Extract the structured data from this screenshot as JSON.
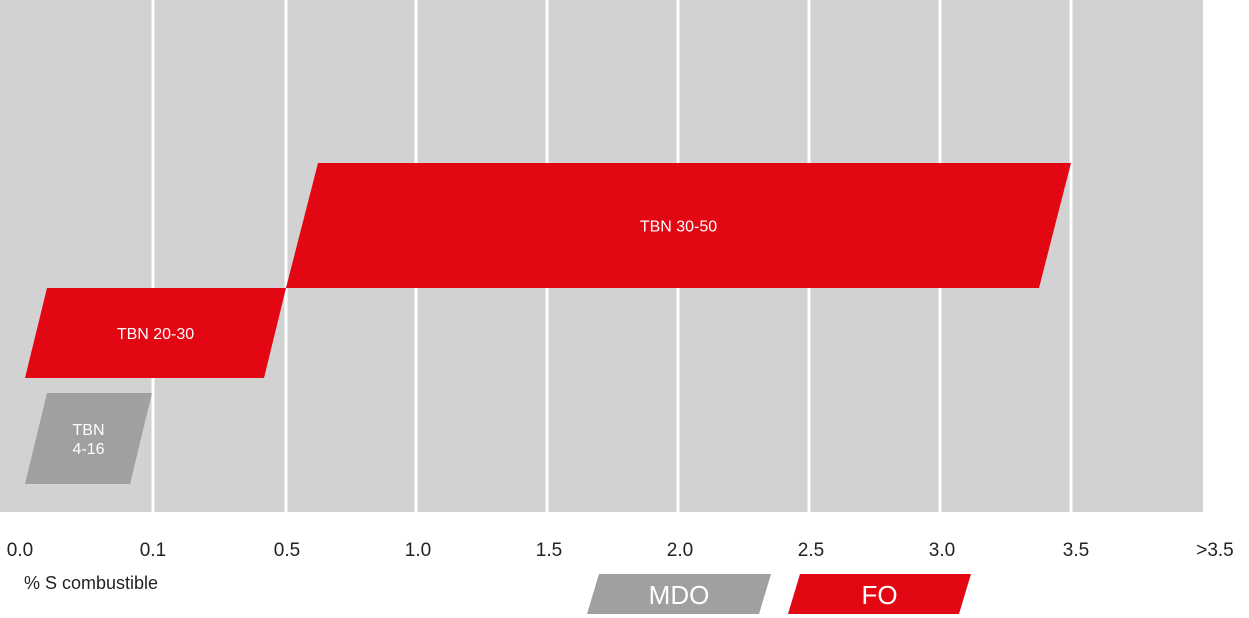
{
  "chart_data": {
    "type": "bar",
    "orientation": "horizontal-ranges",
    "xlabel": "% S combustible",
    "ylabel": "",
    "x_ticks": [
      "0.0",
      "0.1",
      "0.5",
      "1.0",
      "1.5",
      "2.0",
      "2.5",
      "3.0",
      "3.5",
      ">3.5"
    ],
    "grid": true,
    "series": [
      {
        "name": "TBN 4-16",
        "label_lines": [
          "TBN",
          "4-16"
        ],
        "x_start": "0.0",
        "x_end": "0.1",
        "fuel": "MDO"
      },
      {
        "name": "TBN 20-30",
        "label_lines": [
          "TBN 20-30"
        ],
        "x_start": "0.0",
        "x_end": "0.5",
        "fuel": "FO"
      },
      {
        "name": "TBN 30-50",
        "label_lines": [
          "TBN 30-50"
        ],
        "x_start": "0.5",
        "x_end": "3.5",
        "fuel": "FO"
      }
    ],
    "legend": [
      {
        "label": "MDO",
        "color": "#a0a0a0"
      },
      {
        "label": "FO",
        "color": "#e30613"
      }
    ],
    "legend_placement": "bottom-right"
  },
  "colors": {
    "background": "#d2d2d2",
    "grid": "#ffffff",
    "fo": "#e30613",
    "mdo": "#a0a0a0"
  }
}
